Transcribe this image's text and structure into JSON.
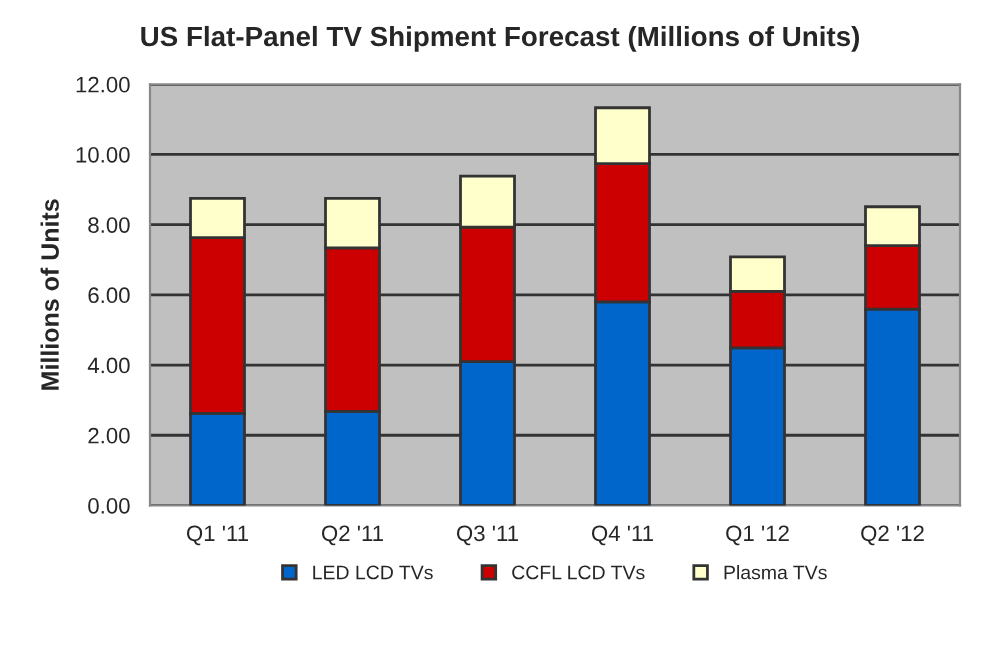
{
  "chart_data": {
    "type": "bar",
    "title": "US Flat-Panel TV Shipment Forecast (Millions of Units)",
    "ylabel": "Millions of Units",
    "categories": [
      "Q1 '11",
      "Q2 '11",
      "Q3 '11",
      "Q4 '11",
      "Q1 '12",
      "Q2 '12"
    ],
    "stacked": true,
    "series": [
      {
        "name": "LED LCD TVs",
        "color": "#0066cc",
        "values": [
          2.62,
          2.68,
          4.1,
          5.8,
          4.49,
          5.59
        ]
      },
      {
        "name": "CCFL LCD TVs",
        "color": "#cc0000",
        "values": [
          5.01,
          4.66,
          3.83,
          3.94,
          1.61,
          1.81
        ]
      },
      {
        "name": "Plasma TVs",
        "color": "#ffffcc",
        "values": [
          1.12,
          1.41,
          1.45,
          1.59,
          0.98,
          1.11
        ]
      }
    ],
    "ylim": [
      0,
      12
    ],
    "yticks": [
      {
        "value": 0,
        "label": "0.00"
      },
      {
        "value": 2,
        "label": "2.00"
      },
      {
        "value": 4,
        "label": "4.00"
      },
      {
        "value": 6,
        "label": "6.00"
      },
      {
        "value": 8,
        "label": "8.00"
      },
      {
        "value": 10,
        "label": "10.00"
      },
      {
        "value": 12,
        "label": "12.00"
      }
    ],
    "grid": "y",
    "legend": "bottom"
  }
}
